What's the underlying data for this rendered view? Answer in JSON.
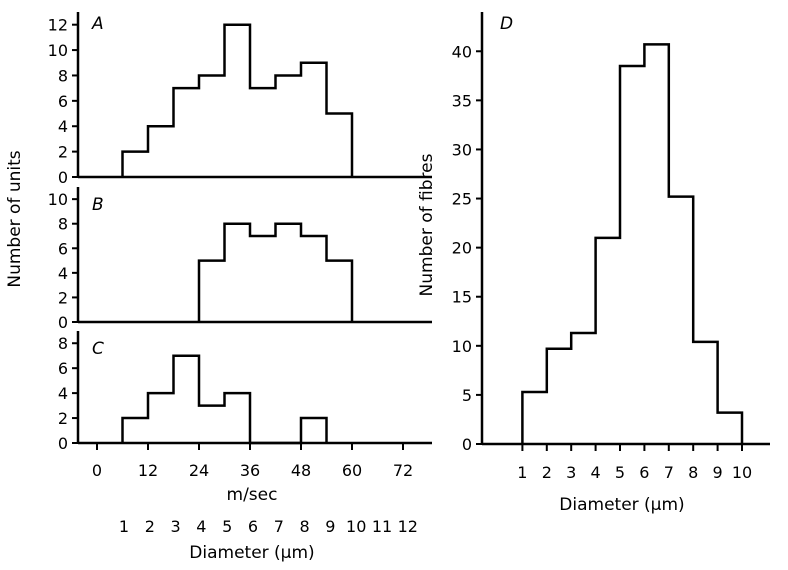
{
  "chart_data": [
    {
      "type": "histogram",
      "panel": "A",
      "bin_edges": [
        6,
        12,
        18,
        24,
        30,
        36,
        42,
        48,
        54,
        60
      ],
      "values": [
        2,
        4,
        7,
        8,
        12,
        7,
        8,
        9,
        5
      ],
      "ylim": [
        0,
        13
      ],
      "yticks": [
        0,
        2,
        4,
        6,
        8,
        10,
        12
      ],
      "xlim": [
        -4,
        72
      ]
    },
    {
      "type": "histogram",
      "panel": "B",
      "bin_edges": [
        24,
        30,
        36,
        42,
        48,
        54,
        60
      ],
      "values": [
        5,
        8,
        7,
        8,
        7,
        5
      ],
      "ylim": [
        0,
        10.5
      ],
      "yticks": [
        0,
        2,
        4,
        6,
        8,
        10
      ],
      "xlim": [
        -4,
        72
      ]
    },
    {
      "type": "histogram",
      "panel": "C",
      "bin_edges": [
        6,
        12,
        18,
        24,
        30,
        36,
        42,
        48,
        54
      ],
      "values": [
        2,
        4,
        7,
        3,
        4,
        0,
        0,
        2
      ],
      "ylim": [
        0,
        8.5
      ],
      "yticks": [
        0,
        2,
        4,
        6,
        8
      ],
      "xlim": [
        -4,
        72
      ],
      "xticks": [
        0,
        12,
        24,
        36,
        48,
        60,
        72
      ],
      "xlabel": "m/sec",
      "secondary_xticks": [
        "1",
        "2",
        "3",
        "4",
        "5",
        "6",
        "7",
        "8",
        "9",
        "10",
        "11",
        "12"
      ],
      "secondary_xlabel": "Diameter (μm)"
    },
    {
      "type": "histogram",
      "panel": "D",
      "bin_edges": [
        1,
        2,
        3,
        4,
        5,
        6,
        7,
        8,
        9,
        10
      ],
      "values": [
        5.3,
        9.7,
        11.3,
        21,
        38.5,
        40.7,
        25.2,
        10.4,
        3.2
      ],
      "ylim": [
        0,
        44
      ],
      "yticks": [
        0,
        5,
        10,
        15,
        20,
        25,
        30,
        35,
        40
      ],
      "xlim": [
        -0.8,
        11
      ],
      "xticks": [
        "1",
        "2",
        "3",
        "4",
        "5",
        "6",
        "7",
        "8",
        "9",
        "10"
      ],
      "xlabel": "Diameter (μm)",
      "ylabel": "Number of fibres"
    }
  ],
  "shared": {
    "ylabel_left": "Number of units"
  }
}
